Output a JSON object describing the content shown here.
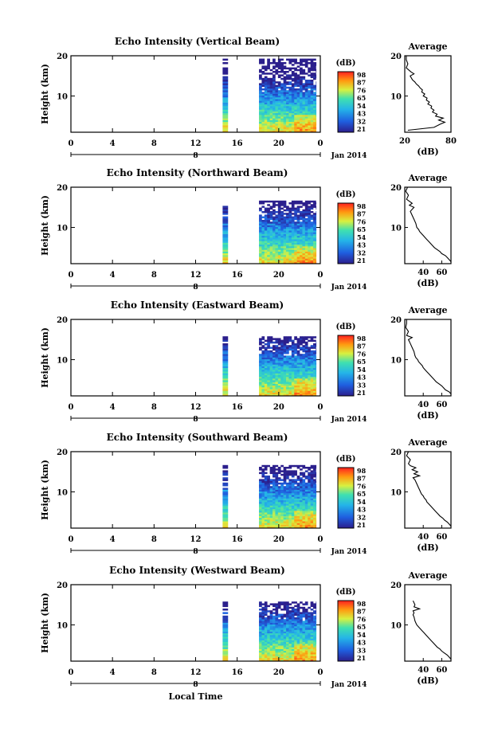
{
  "chart_data": [
    {
      "type": "heatmap",
      "title": "Echo Intensity (Vertical Beam)",
      "ylabel": "Height (km)",
      "xlim": [
        0,
        24
      ],
      "ylim": [
        1,
        20
      ],
      "xticks": [
        "0",
        "4",
        "8",
        "12",
        "16",
        "20",
        "0"
      ],
      "yticks": [
        "10",
        "20"
      ],
      "date_label": "Jan 2014",
      "day_label": "8",
      "colorbar": {
        "unit": "(dB)",
        "ticks": [
          "98",
          "87",
          "76",
          "65",
          "54",
          "43",
          "32",
          "21"
        ]
      },
      "data_spans": [
        [
          14.6,
          15.1
        ],
        [
          18.1,
          23.6
        ]
      ],
      "top_km": 19.2,
      "profile": {
        "title": "Average",
        "xlabel": "(dB)",
        "xlim": [
          20,
          80
        ],
        "xticks": [
          "20",
          "80"
        ],
        "yticks": [
          "10",
          "20"
        ],
        "points": [
          [
            24,
            1.5
          ],
          [
            58,
            2.2
          ],
          [
            66,
            3
          ],
          [
            72,
            3.5
          ],
          [
            64,
            4
          ],
          [
            70,
            4.5
          ],
          [
            60,
            5
          ],
          [
            62,
            5.5
          ],
          [
            56,
            6
          ],
          [
            58,
            6.5
          ],
          [
            54,
            7
          ],
          [
            55,
            7.5
          ],
          [
            50,
            8
          ],
          [
            52,
            8.5
          ],
          [
            48,
            9
          ],
          [
            49,
            9.5
          ],
          [
            44,
            10
          ],
          [
            46,
            10.5
          ],
          [
            42,
            11
          ],
          [
            43,
            11.5
          ],
          [
            40,
            12
          ],
          [
            38,
            12.5
          ],
          [
            35,
            13
          ],
          [
            33,
            13.5
          ],
          [
            30,
            14
          ],
          [
            27,
            15
          ],
          [
            32,
            15.5
          ],
          [
            28,
            16
          ],
          [
            22,
            17
          ],
          [
            24,
            18
          ],
          [
            22,
            19
          ],
          [
            22,
            20
          ]
        ]
      }
    },
    {
      "type": "heatmap",
      "title": "Echo Intensity (Northward Beam)",
      "ylabel": "Height (km)",
      "xlim": [
        0,
        24
      ],
      "ylim": [
        1,
        20
      ],
      "xticks": [
        "0",
        "4",
        "8",
        "12",
        "16",
        "20",
        "0"
      ],
      "yticks": [
        "10",
        "20"
      ],
      "date_label": "Jan 2014",
      "day_label": "8",
      "colorbar": {
        "unit": "(dB)",
        "ticks": [
          "98",
          "87",
          "76",
          "65",
          "54",
          "43",
          "32",
          "21"
        ]
      },
      "data_spans": [
        [
          14.6,
          15.1
        ],
        [
          18.1,
          23.6
        ]
      ],
      "top_km": 16.5,
      "profile": {
        "title": "Average",
        "xlabel": "(dB)",
        "xlim": [
          20,
          70
        ],
        "xticks": [
          "40",
          "60"
        ],
        "yticks": [
          "10",
          "20"
        ],
        "points": [
          [
            70,
            1.5
          ],
          [
            68,
            2
          ],
          [
            66,
            2.5
          ],
          [
            64,
            3
          ],
          [
            60,
            3.5
          ],
          [
            58,
            4
          ],
          [
            55,
            4.5
          ],
          [
            52,
            5
          ],
          [
            50,
            5.5
          ],
          [
            48,
            6
          ],
          [
            46,
            6.5
          ],
          [
            44,
            7
          ],
          [
            42,
            7.5
          ],
          [
            40,
            8
          ],
          [
            38,
            8.5
          ],
          [
            36,
            9
          ],
          [
            35,
            9.5
          ],
          [
            33,
            10
          ],
          [
            32,
            11
          ],
          [
            30,
            12
          ],
          [
            28,
            13
          ],
          [
            26,
            14
          ],
          [
            30,
            15
          ],
          [
            25,
            15.5
          ],
          [
            28,
            16
          ],
          [
            22,
            17
          ],
          [
            24,
            18
          ],
          [
            21,
            19
          ],
          [
            23,
            20
          ]
        ]
      }
    },
    {
      "type": "heatmap",
      "title": "Echo Intensity (Eastward Beam)",
      "ylabel": "Height (km)",
      "xlim": [
        0,
        24
      ],
      "ylim": [
        1,
        20
      ],
      "xticks": [
        "0",
        "4",
        "8",
        "12",
        "16",
        "20",
        "0"
      ],
      "yticks": [
        "10",
        "20"
      ],
      "date_label": "Jan 2014",
      "day_label": "8",
      "colorbar": {
        "unit": "(dB)",
        "ticks": [
          "98",
          "87",
          "76",
          "65",
          "54",
          "43",
          "33",
          "21"
        ]
      },
      "data_spans": [
        [
          14.6,
          15.1
        ],
        [
          18.1,
          23.6
        ]
      ],
      "top_km": 15.5,
      "profile": {
        "title": "Average",
        "xlabel": "(dB)",
        "xlim": [
          20,
          70
        ],
        "xticks": [
          "40",
          "60"
        ],
        "yticks": [
          "10",
          "20"
        ],
        "points": [
          [
            70,
            1.5
          ],
          [
            68,
            2
          ],
          [
            64,
            2.5
          ],
          [
            62,
            3
          ],
          [
            60,
            3.5
          ],
          [
            57,
            4
          ],
          [
            54,
            4.5
          ],
          [
            52,
            5
          ],
          [
            50,
            5.5
          ],
          [
            48,
            6
          ],
          [
            46,
            6.5
          ],
          [
            44,
            7
          ],
          [
            42,
            7.5
          ],
          [
            40,
            8
          ],
          [
            39,
            8.5
          ],
          [
            37,
            9
          ],
          [
            35,
            9.5
          ],
          [
            34,
            10
          ],
          [
            32,
            10.5
          ],
          [
            31,
            11
          ],
          [
            30,
            12
          ],
          [
            28,
            13
          ],
          [
            26,
            14
          ],
          [
            24,
            15
          ],
          [
            28,
            15.5
          ],
          [
            22,
            16
          ],
          [
            24,
            17
          ],
          [
            21,
            18
          ],
          [
            22,
            19
          ],
          [
            22,
            20
          ]
        ]
      }
    },
    {
      "type": "heatmap",
      "title": "Echo Intensity (Southward Beam)",
      "ylabel": "Height (km)",
      "xlim": [
        0,
        24
      ],
      "ylim": [
        1,
        20
      ],
      "xticks": [
        "0",
        "4",
        "8",
        "12",
        "16",
        "20",
        "0"
      ],
      "yticks": [
        "10",
        "20"
      ],
      "date_label": "Jan 2014",
      "day_label": "8",
      "colorbar": {
        "unit": "(dB)",
        "ticks": [
          "98",
          "87",
          "76",
          "65",
          "54",
          "43",
          "32",
          "21"
        ]
      },
      "data_spans": [
        [
          14.6,
          15.1
        ],
        [
          18.1,
          23.6
        ]
      ],
      "top_km": 16.5,
      "profile": {
        "title": "Average",
        "xlabel": "(dB)",
        "xlim": [
          20,
          70
        ],
        "xticks": [
          "40",
          "60"
        ],
        "yticks": [
          "10",
          "20"
        ],
        "points": [
          [
            70,
            1.5
          ],
          [
            68,
            2
          ],
          [
            66,
            2.5
          ],
          [
            63,
            3
          ],
          [
            61,
            3.5
          ],
          [
            58,
            4
          ],
          [
            56,
            4.5
          ],
          [
            54,
            5
          ],
          [
            52,
            5.5
          ],
          [
            50,
            6
          ],
          [
            48,
            6.5
          ],
          [
            46,
            7
          ],
          [
            44,
            7.5
          ],
          [
            43,
            8
          ],
          [
            41,
            8.5
          ],
          [
            40,
            9
          ],
          [
            38,
            9.5
          ],
          [
            37,
            10
          ],
          [
            36,
            10.5
          ],
          [
            35,
            11
          ],
          [
            33,
            12
          ],
          [
            31,
            13
          ],
          [
            29,
            13.5
          ],
          [
            36,
            14
          ],
          [
            30,
            14.5
          ],
          [
            34,
            15
          ],
          [
            28,
            15.5
          ],
          [
            32,
            16
          ],
          [
            26,
            16.5
          ],
          [
            24,
            17
          ],
          [
            26,
            18
          ],
          [
            22,
            19
          ],
          [
            24,
            20
          ]
        ]
      }
    },
    {
      "type": "heatmap",
      "title": "Echo Intensity (Westward Beam)",
      "ylabel": "Height (km)",
      "xlabel": "Local Time",
      "xlim": [
        0,
        24
      ],
      "ylim": [
        1,
        20
      ],
      "xticks": [
        "0",
        "4",
        "8",
        "12",
        "16",
        "20",
        "0"
      ],
      "yticks": [
        "10",
        "20"
      ],
      "date_label": "Jan 2014",
      "day_label": "8",
      "colorbar": {
        "unit": "(dB)",
        "ticks": [
          "98",
          "87",
          "76",
          "65",
          "54",
          "43",
          "33",
          "21"
        ]
      },
      "data_spans": [
        [
          14.6,
          15.1
        ],
        [
          18.1,
          23.6
        ]
      ],
      "top_km": 15.5,
      "profile": {
        "title": "Average",
        "xlabel": "(dB)",
        "xlim": [
          20,
          70
        ],
        "xticks": [
          "40",
          "60"
        ],
        "yticks": [
          "10",
          "20"
        ],
        "points": [
          [
            70,
            1.5
          ],
          [
            68,
            2
          ],
          [
            66,
            2.5
          ],
          [
            63,
            3
          ],
          [
            60,
            3.5
          ],
          [
            58,
            4
          ],
          [
            55,
            4.5
          ],
          [
            53,
            5
          ],
          [
            51,
            5.5
          ],
          [
            49,
            6
          ],
          [
            47,
            6.5
          ],
          [
            45,
            7
          ],
          [
            43,
            7.5
          ],
          [
            41,
            8
          ],
          [
            39,
            8.5
          ],
          [
            37,
            9
          ],
          [
            35,
            9.5
          ],
          [
            33,
            10
          ],
          [
            32,
            10.5
          ],
          [
            31,
            11
          ],
          [
            30,
            12
          ],
          [
            29,
            12.5
          ],
          [
            30,
            13
          ],
          [
            29,
            13.5
          ],
          [
            36,
            14
          ],
          [
            30,
            14.5
          ],
          [
            31,
            15
          ],
          [
            29,
            16
          ]
        ]
      }
    }
  ]
}
